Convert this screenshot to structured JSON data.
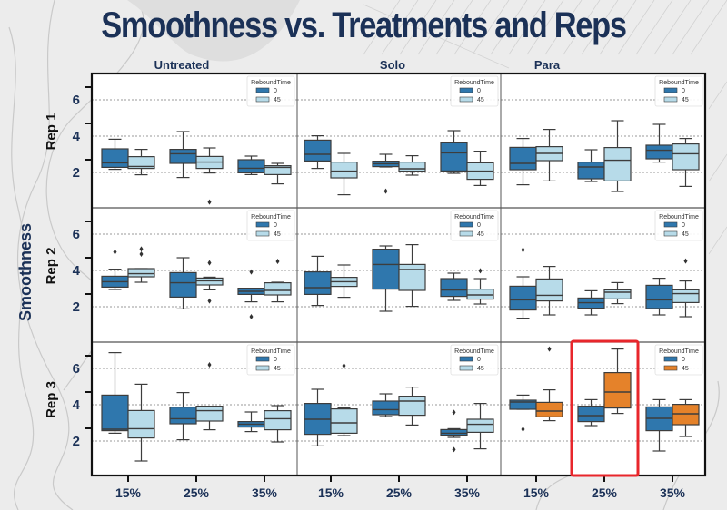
{
  "chart_data": {
    "type": "boxplot",
    "title": "Smoothness vs. Treatments and Reps",
    "ylabel": "Smoothness",
    "ylim": [
      0,
      7.45
    ],
    "yticks": [
      2,
      4,
      6
    ],
    "grid": "horizontal dotted at 2, 4, 6",
    "columns": [
      "Untreated",
      "Solo",
      "Para"
    ],
    "rows": [
      "Rep 1",
      "Rep 2",
      "Rep 3"
    ],
    "categories": [
      "15%",
      "25%",
      "35%"
    ],
    "legend": {
      "title": "ReboundTime",
      "entries": [
        "0",
        "45"
      ],
      "placement": "top-right of each panel"
    },
    "colors": {
      "rt0": "#2f77ad",
      "rt45": "#b7dbe9",
      "rt0_highlight": "#2f77ad",
      "rt45_highlight": "#e5822a",
      "line": "#3d3d3d",
      "highlight_box": "#e8262b"
    },
    "highlight": {
      "row": "Rep 3",
      "column": "Para",
      "category": "25%",
      "note": "red rectangle around this group; Para/Rep 3 panel uses orange for ReboundTime 45"
    },
    "panels": [
      {
        "row": "Rep 1",
        "column": "Untreated",
        "groups": [
          {
            "category": "15%",
            "rt0": {
              "whislo": 2.17,
              "q1": 2.28,
              "med": 2.53,
              "q3": 3.3,
              "whishi": 3.83,
              "fliers": []
            },
            "rt45": {
              "whislo": 1.87,
              "q1": 2.22,
              "med": 2.33,
              "q3": 2.87,
              "whishi": 3.27,
              "fliers": []
            }
          },
          {
            "category": "25%",
            "rt0": {
              "whislo": 1.72,
              "q1": 2.5,
              "med": 3.03,
              "q3": 3.27,
              "whishi": 4.25,
              "fliers": []
            },
            "rt45": {
              "whislo": 1.97,
              "q1": 2.22,
              "med": 2.57,
              "q3": 2.88,
              "whishi": 3.35,
              "fliers": [
                0.37
              ]
            }
          },
          {
            "category": "35%",
            "rt0": {
              "whislo": 1.88,
              "q1": 1.98,
              "med": 2.23,
              "q3": 2.7,
              "whishi": 2.9,
              "fliers": []
            },
            "rt45": {
              "whislo": 1.37,
              "q1": 1.88,
              "med": 2.28,
              "q3": 2.37,
              "whishi": 2.5,
              "fliers": []
            }
          }
        ]
      },
      {
        "row": "Rep 1",
        "column": "Solo",
        "groups": [
          {
            "category": "15%",
            "rt0": {
              "whislo": 2.22,
              "q1": 2.63,
              "med": 3.0,
              "q3": 3.78,
              "whishi": 4.02,
              "fliers": []
            },
            "rt45": {
              "whislo": 0.77,
              "q1": 1.7,
              "med": 2.07,
              "q3": 2.57,
              "whishi": 3.05,
              "fliers": []
            }
          },
          {
            "category": "25%",
            "rt0": {
              "whislo": 2.3,
              "q1": 2.32,
              "med": 2.48,
              "q3": 2.62,
              "whishi": 3.0,
              "fliers": [
                0.97
              ]
            },
            "rt45": {
              "whislo": 1.85,
              "q1": 2.07,
              "med": 2.2,
              "q3": 2.57,
              "whishi": 2.92,
              "fliers": []
            }
          },
          {
            "category": "35%",
            "rt0": {
              "whislo": 1.95,
              "q1": 2.08,
              "med": 3.08,
              "q3": 3.63,
              "whishi": 4.3,
              "fliers": []
            },
            "rt45": {
              "whislo": 1.28,
              "q1": 1.62,
              "med": 2.07,
              "q3": 2.53,
              "whishi": 3.17,
              "fliers": []
            }
          }
        ]
      },
      {
        "row": "Rep 1",
        "column": "Para",
        "groups": [
          {
            "category": "15%",
            "rt0": {
              "whislo": 1.32,
              "q1": 2.15,
              "med": 2.5,
              "q3": 3.38,
              "whishi": 3.87,
              "fliers": []
            },
            "rt45": {
              "whislo": 1.53,
              "q1": 2.65,
              "med": 3.05,
              "q3": 3.42,
              "whishi": 4.37,
              "fliers": []
            }
          },
          {
            "category": "25%",
            "rt0": {
              "whislo": 1.5,
              "q1": 1.65,
              "med": 2.3,
              "q3": 2.57,
              "whishi": 3.25,
              "fliers": []
            },
            "rt45": {
              "whislo": 0.95,
              "q1": 1.53,
              "med": 2.67,
              "q3": 3.37,
              "whishi": 4.85,
              "fliers": []
            }
          },
          {
            "category": "35%",
            "rt0": {
              "whislo": 2.57,
              "q1": 2.75,
              "med": 3.22,
              "q3": 3.5,
              "whishi": 4.65,
              "fliers": []
            },
            "rt45": {
              "whislo": 1.23,
              "q1": 2.15,
              "med": 3.03,
              "q3": 3.57,
              "whishi": 3.87,
              "fliers": []
            }
          }
        ]
      },
      {
        "row": "Rep 2",
        "column": "Untreated",
        "groups": [
          {
            "category": "15%",
            "rt0": {
              "whislo": 2.95,
              "q1": 3.08,
              "med": 3.38,
              "q3": 3.68,
              "whishi": 4.07,
              "fliers": [
                5.02
              ]
            },
            "rt45": {
              "whislo": 3.35,
              "q1": 3.65,
              "med": 3.82,
              "q3": 4.1,
              "whishi": 4.1,
              "fliers": [
                5.18,
                4.9
              ]
            }
          },
          {
            "category": "25%",
            "rt0": {
              "whislo": 1.88,
              "q1": 2.53,
              "med": 3.32,
              "q3": 3.88,
              "whishi": 4.7,
              "fliers": []
            },
            "rt45": {
              "whislo": 2.93,
              "q1": 3.2,
              "med": 3.43,
              "q3": 3.58,
              "whishi": 3.63,
              "fliers": [
                4.42,
                2.32
              ]
            }
          },
          {
            "category": "35%",
            "rt0": {
              "whislo": 2.27,
              "q1": 2.68,
              "med": 2.85,
              "q3": 3.02,
              "whishi": 3.02,
              "fliers": [
                3.92,
                1.45
              ]
            },
            "rt45": {
              "whislo": 2.27,
              "q1": 2.65,
              "med": 2.9,
              "q3": 3.32,
              "whishi": 3.35,
              "fliers": [
                4.5
              ]
            }
          }
        ]
      },
      {
        "row": "Rep 2",
        "column": "Solo",
        "groups": [
          {
            "category": "15%",
            "rt0": {
              "whislo": 2.07,
              "q1": 2.68,
              "med": 3.05,
              "q3": 3.92,
              "whishi": 4.78,
              "fliers": []
            },
            "rt45": {
              "whislo": 2.52,
              "q1": 3.12,
              "med": 3.38,
              "q3": 3.62,
              "whishi": 4.3,
              "fliers": []
            }
          },
          {
            "category": "25%",
            "rt0": {
              "whislo": 1.75,
              "q1": 2.97,
              "med": 4.33,
              "q3": 5.17,
              "whishi": 5.35,
              "fliers": []
            },
            "rt45": {
              "whislo": 2.02,
              "q1": 2.9,
              "med": 4.05,
              "q3": 4.33,
              "whishi": 5.42,
              "fliers": []
            }
          },
          {
            "category": "35%",
            "rt0": {
              "whislo": 2.35,
              "q1": 2.57,
              "med": 2.92,
              "q3": 3.55,
              "whishi": 3.85,
              "fliers": []
            },
            "rt45": {
              "whislo": 2.15,
              "q1": 2.42,
              "med": 2.65,
              "q3": 2.97,
              "whishi": 3.55,
              "fliers": [
                3.98
              ]
            }
          }
        ]
      },
      {
        "row": "Rep 2",
        "column": "Para",
        "groups": [
          {
            "category": "15%",
            "rt0": {
              "whislo": 1.37,
              "q1": 1.82,
              "med": 2.38,
              "q3": 3.13,
              "whishi": 3.65,
              "fliers": [
                5.13
              ]
            },
            "rt45": {
              "whislo": 1.55,
              "q1": 2.32,
              "med": 2.63,
              "q3": 3.53,
              "whishi": 4.22,
              "fliers": []
            }
          },
          {
            "category": "25%",
            "rt0": {
              "whislo": 1.55,
              "q1": 1.92,
              "med": 2.22,
              "q3": 2.48,
              "whishi": 2.88,
              "fliers": []
            },
            "rt45": {
              "whislo": 2.17,
              "q1": 2.43,
              "med": 2.8,
              "q3": 2.93,
              "whishi": 3.33,
              "fliers": []
            }
          },
          {
            "category": "35%",
            "rt0": {
              "whislo": 1.55,
              "q1": 1.9,
              "med": 2.38,
              "q3": 3.18,
              "whishi": 3.57,
              "fliers": []
            },
            "rt45": {
              "whislo": 1.45,
              "q1": 2.23,
              "med": 2.72,
              "q3": 2.93,
              "whishi": 3.42,
              "fliers": [
                4.52
              ]
            }
          }
        ]
      },
      {
        "row": "Rep 3",
        "column": "Untreated",
        "groups": [
          {
            "category": "15%",
            "rt0": {
              "whislo": 2.43,
              "q1": 2.57,
              "med": 2.65,
              "q3": 4.53,
              "whishi": 6.87,
              "fliers": []
            },
            "rt45": {
              "whislo": 0.9,
              "q1": 2.17,
              "med": 2.68,
              "q3": 3.68,
              "whishi": 5.13,
              "fliers": []
            }
          },
          {
            "category": "25%",
            "rt0": {
              "whislo": 2.07,
              "q1": 2.95,
              "med": 3.23,
              "q3": 3.87,
              "whishi": 4.67,
              "fliers": []
            },
            "rt45": {
              "whislo": 2.62,
              "q1": 3.1,
              "med": 3.67,
              "q3": 3.92,
              "whishi": 3.92,
              "fliers": [
                6.2
              ]
            }
          },
          {
            "category": "35%",
            "rt0": {
              "whislo": 2.52,
              "q1": 2.77,
              "med": 2.93,
              "q3": 3.07,
              "whishi": 3.6,
              "fliers": []
            },
            "rt45": {
              "whislo": 1.95,
              "q1": 2.62,
              "med": 3.23,
              "q3": 3.67,
              "whishi": 3.95,
              "fliers": []
            }
          }
        ]
      },
      {
        "row": "Rep 3",
        "column": "Solo",
        "groups": [
          {
            "category": "15%",
            "rt0": {
              "whislo": 1.73,
              "q1": 2.37,
              "med": 3.2,
              "q3": 4.07,
              "whishi": 4.85,
              "fliers": []
            },
            "rt45": {
              "whislo": 2.3,
              "q1": 2.43,
              "med": 3.0,
              "q3": 3.77,
              "whishi": 3.82,
              "fliers": [
                6.15
              ]
            }
          },
          {
            "category": "25%",
            "rt0": {
              "whislo": 3.35,
              "q1": 3.45,
              "med": 3.73,
              "q3": 4.2,
              "whishi": 4.6,
              "fliers": []
            },
            "rt45": {
              "whislo": 2.88,
              "q1": 3.42,
              "med": 4.2,
              "q3": 4.47,
              "whishi": 4.97,
              "fliers": []
            }
          },
          {
            "category": "35%",
            "rt0": {
              "whislo": 2.2,
              "q1": 2.32,
              "med": 2.43,
              "q3": 2.63,
              "whishi": 2.68,
              "fliers": [
                3.58,
                1.53
              ]
            },
            "rt45": {
              "whislo": 1.57,
              "q1": 2.48,
              "med": 2.92,
              "q3": 3.2,
              "whishi": 4.07,
              "fliers": []
            }
          }
        ]
      },
      {
        "row": "Rep 3",
        "column": "Para",
        "groups": [
          {
            "category": "15%",
            "rt0": {
              "whislo": 3.75,
              "q1": 3.75,
              "med": 4.15,
              "q3": 4.25,
              "whishi": 4.53,
              "fliers": [
                2.65
              ]
            },
            "rt45": {
              "whislo": 3.12,
              "q1": 3.33,
              "med": 3.65,
              "q3": 4.13,
              "whishi": 4.82,
              "fliers": [
                7.07
              ]
            }
          },
          {
            "category": "25%",
            "rt0": {
              "whislo": 2.85,
              "q1": 3.07,
              "med": 3.4,
              "q3": 3.92,
              "whishi": 4.28,
              "fliers": []
            },
            "rt45": {
              "whislo": 3.52,
              "q1": 3.82,
              "med": 4.7,
              "q3": 5.77,
              "whishi": 7.07,
              "fliers": []
            }
          },
          {
            "category": "35%",
            "rt0": {
              "whislo": 1.45,
              "q1": 2.57,
              "med": 3.25,
              "q3": 3.88,
              "whishi": 4.28,
              "fliers": []
            },
            "rt45": {
              "whislo": 2.25,
              "q1": 2.9,
              "med": 3.5,
              "q3": 4.02,
              "whishi": 4.28,
              "fliers": []
            }
          }
        ]
      }
    ]
  }
}
